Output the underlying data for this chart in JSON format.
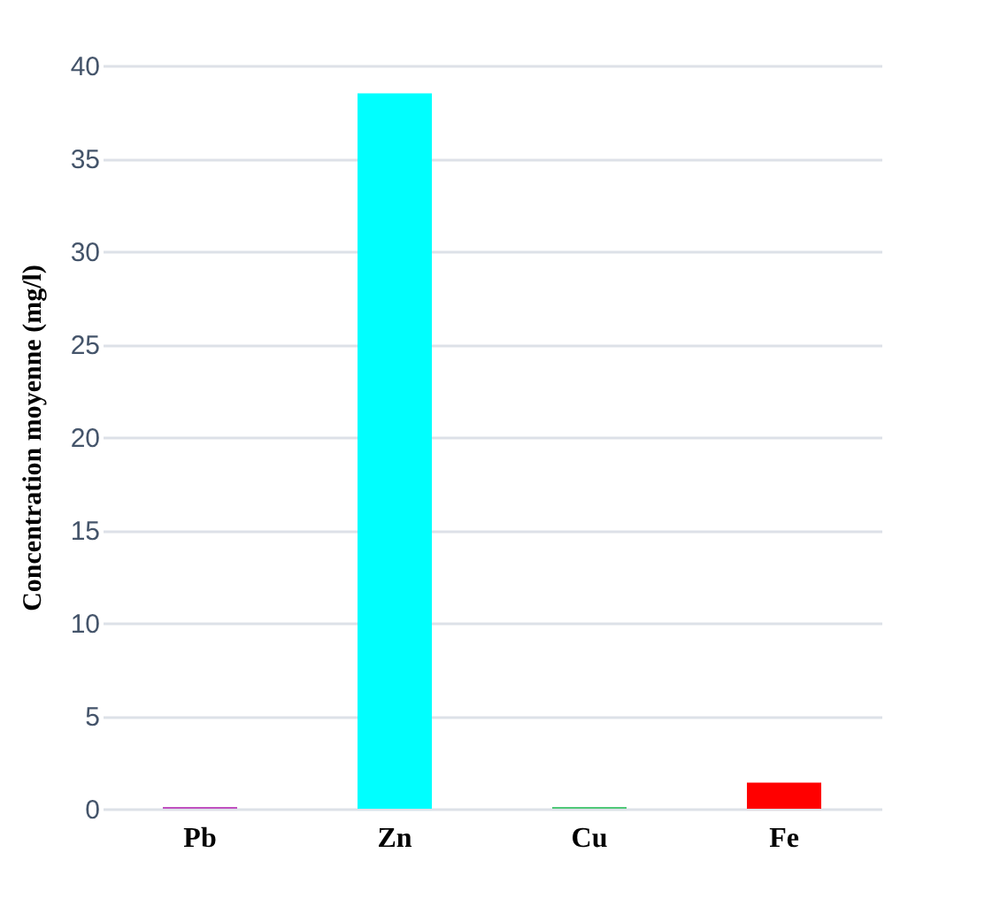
{
  "chart_data": {
    "type": "bar",
    "ylabel": "Concentration moyenne (mg/l)",
    "categories": [
      "Pb",
      "Zn",
      "Cu",
      "Fe"
    ],
    "values": [
      0.1,
      38.5,
      0.1,
      1.4
    ],
    "colors": [
      "#c050c0",
      "#00ffff",
      "#50c878",
      "#ff0000"
    ],
    "ylim": [
      0,
      40
    ],
    "yticks": [
      0,
      5,
      10,
      15,
      20,
      25,
      30,
      35,
      40
    ],
    "grid": "y"
  }
}
